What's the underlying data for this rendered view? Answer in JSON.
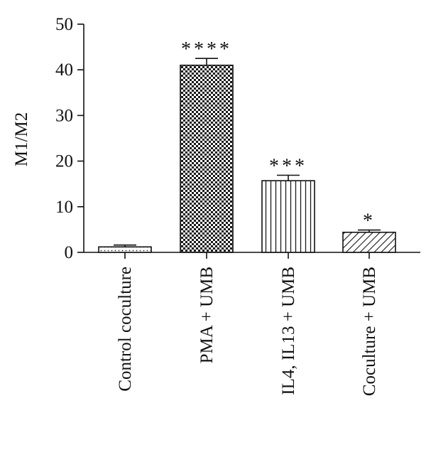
{
  "chart_data": {
    "type": "bar",
    "title": "",
    "xlabel": "",
    "ylabel": "M1/M2",
    "ylim": [
      0,
      50
    ],
    "yticks": [
      0,
      10,
      20,
      30,
      40,
      50
    ],
    "grid": false,
    "categories": [
      "Control coculture",
      "PMA + UMB",
      "IL4, IL13 + UMB",
      "Coculture + UMB"
    ],
    "values": [
      1.2,
      41.0,
      15.7,
      4.4
    ],
    "errors": [
      0.4,
      1.5,
      1.2,
      0.5
    ],
    "significance": [
      "",
      "****",
      "***",
      "*"
    ],
    "patterns": [
      "dots",
      "checker",
      "vertical-lines",
      "diagonal-lines"
    ]
  }
}
